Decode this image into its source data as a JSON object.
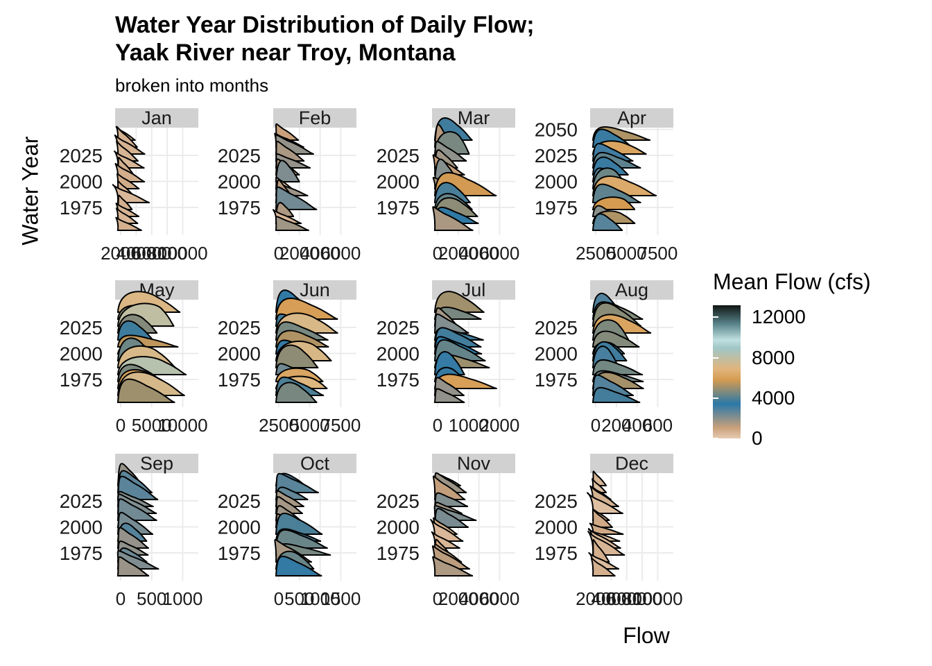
{
  "title_lines": [
    "Water Year Distribution of Daily Flow;",
    "Yaak River near Troy, Montana"
  ],
  "subtitle": "broken into months",
  "xlabel": "Flow",
  "ylabel": "Water Year",
  "legend": {
    "title": "Mean Flow (cfs)",
    "ticks": [
      {
        "value": 12000,
        "label": "12000"
      },
      {
        "value": 8000,
        "label": "8000"
      },
      {
        "value": 4000,
        "label": "4000"
      },
      {
        "value": 0,
        "label": "0"
      }
    ],
    "range": [
      0,
      13200
    ],
    "palette": [
      "#e6cbb2",
      "#2b78a8",
      "#d59b51",
      "#bfe0df",
      "#0f1512"
    ]
  },
  "chart_data": {
    "type": "area",
    "description_free": true,
    "facets": [
      {
        "label": "Jan",
        "yticks": [
          "2025",
          "2000",
          "1975"
        ],
        "xticks": [
          "2000",
          "4000",
          "6000",
          "8000",
          "10000"
        ],
        "xlim": [
          0,
          10000
        ],
        "peaks": [
          300,
          700
        ]
      },
      {
        "label": "Feb",
        "yticks": [
          "2025",
          "2000",
          "1975"
        ],
        "xticks": [
          "0",
          "2000",
          "4000",
          "6000"
        ],
        "xlim": [
          0,
          6000
        ],
        "peaks": [
          250,
          1400
        ]
      },
      {
        "label": "Mar",
        "yticks": [
          "2025",
          "2000",
          "1975"
        ],
        "xticks": [
          "0",
          "2000",
          "4000",
          "6000"
        ],
        "xlim": [
          0,
          6000
        ],
        "peaks": [
          400,
          3500
        ]
      },
      {
        "label": "Apr",
        "yticks": [
          "2050",
          "2025",
          "2000",
          "1975"
        ],
        "xticks": [
          "2500",
          "5000",
          "7500"
        ],
        "xlim": [
          0,
          10000
        ],
        "peaks": [
          1500,
          6500
        ]
      },
      {
        "label": "May",
        "yticks": [
          "2025",
          "2000",
          "1975"
        ],
        "xticks": [
          "0",
          "5000",
          "10000"
        ],
        "xlim": [
          0,
          11000
        ],
        "peaks": [
          3000,
          8500
        ]
      },
      {
        "label": "Jun",
        "yticks": [
          "2025",
          "2000",
          "1975"
        ],
        "xticks": [
          "2500",
          "5000",
          "7500"
        ],
        "xlim": [
          0,
          10000
        ],
        "peaks": [
          2000,
          7000
        ]
      },
      {
        "label": "Jul",
        "yticks": [
          "2025",
          "2000",
          "1975"
        ],
        "xticks": [
          "0",
          "1000",
          "2000"
        ],
        "xlim": [
          0,
          2500
        ],
        "peaks": [
          300,
          1400
        ]
      },
      {
        "label": "Aug",
        "yticks": [
          "2025",
          "2000",
          "1975"
        ],
        "xticks": [
          "0",
          "200",
          "400",
          "600"
        ],
        "xlim": [
          0,
          650
        ],
        "peaks": [
          150,
          400
        ]
      },
      {
        "label": "Sep",
        "yticks": [
          "2025",
          "2000",
          "1975"
        ],
        "xticks": [
          "0",
          "500",
          "1000"
        ],
        "xlim": [
          0,
          1100
        ],
        "peaks": [
          120,
          300
        ]
      },
      {
        "label": "Oct",
        "yticks": [
          "2025",
          "2000",
          "1975"
        ],
        "xticks": [
          "0",
          "500",
          "1000",
          "1500"
        ],
        "xlim": [
          0,
          1500
        ],
        "peaks": [
          150,
          900
        ]
      },
      {
        "label": "Nov",
        "yticks": [
          "2025",
          "2000",
          "1975"
        ],
        "xticks": [
          "0",
          "2000",
          "4000",
          "6000"
        ],
        "xlim": [
          0,
          6000
        ],
        "peaks": [
          200,
          1500
        ]
      },
      {
        "label": "Dec",
        "yticks": [
          "2025",
          "2000",
          "1975"
        ],
        "xticks": [
          "2000",
          "4000",
          "6000",
          "8000",
          "10000"
        ],
        "xlim": [
          0,
          10000
        ],
        "peaks": [
          250,
          900
        ]
      }
    ]
  }
}
